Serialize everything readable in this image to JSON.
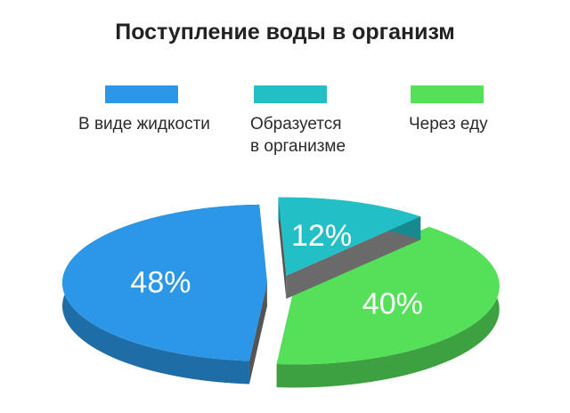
{
  "chart_data": {
    "type": "pie",
    "title": "Поступление воды в организм",
    "categories": [
      "В виде жидкости",
      "Образуется в организме",
      "Через еду"
    ],
    "values": [
      48,
      12,
      40
    ],
    "value_labels": [
      "48%",
      "12%",
      "40%"
    ],
    "colors": [
      "#2b97e6",
      "#22bfc6",
      "#55e05a"
    ],
    "legend": [
      {
        "label_lines": [
          "В виде жидкости"
        ],
        "color": "#2b97e6"
      },
      {
        "label_lines": [
          "Образуется",
          "в организме"
        ],
        "color": "#22bfc6"
      },
      {
        "label_lines": [
          "Через еду"
        ],
        "color": "#55e05a"
      }
    ],
    "legend_position": "top",
    "style": "3d-exploded"
  }
}
